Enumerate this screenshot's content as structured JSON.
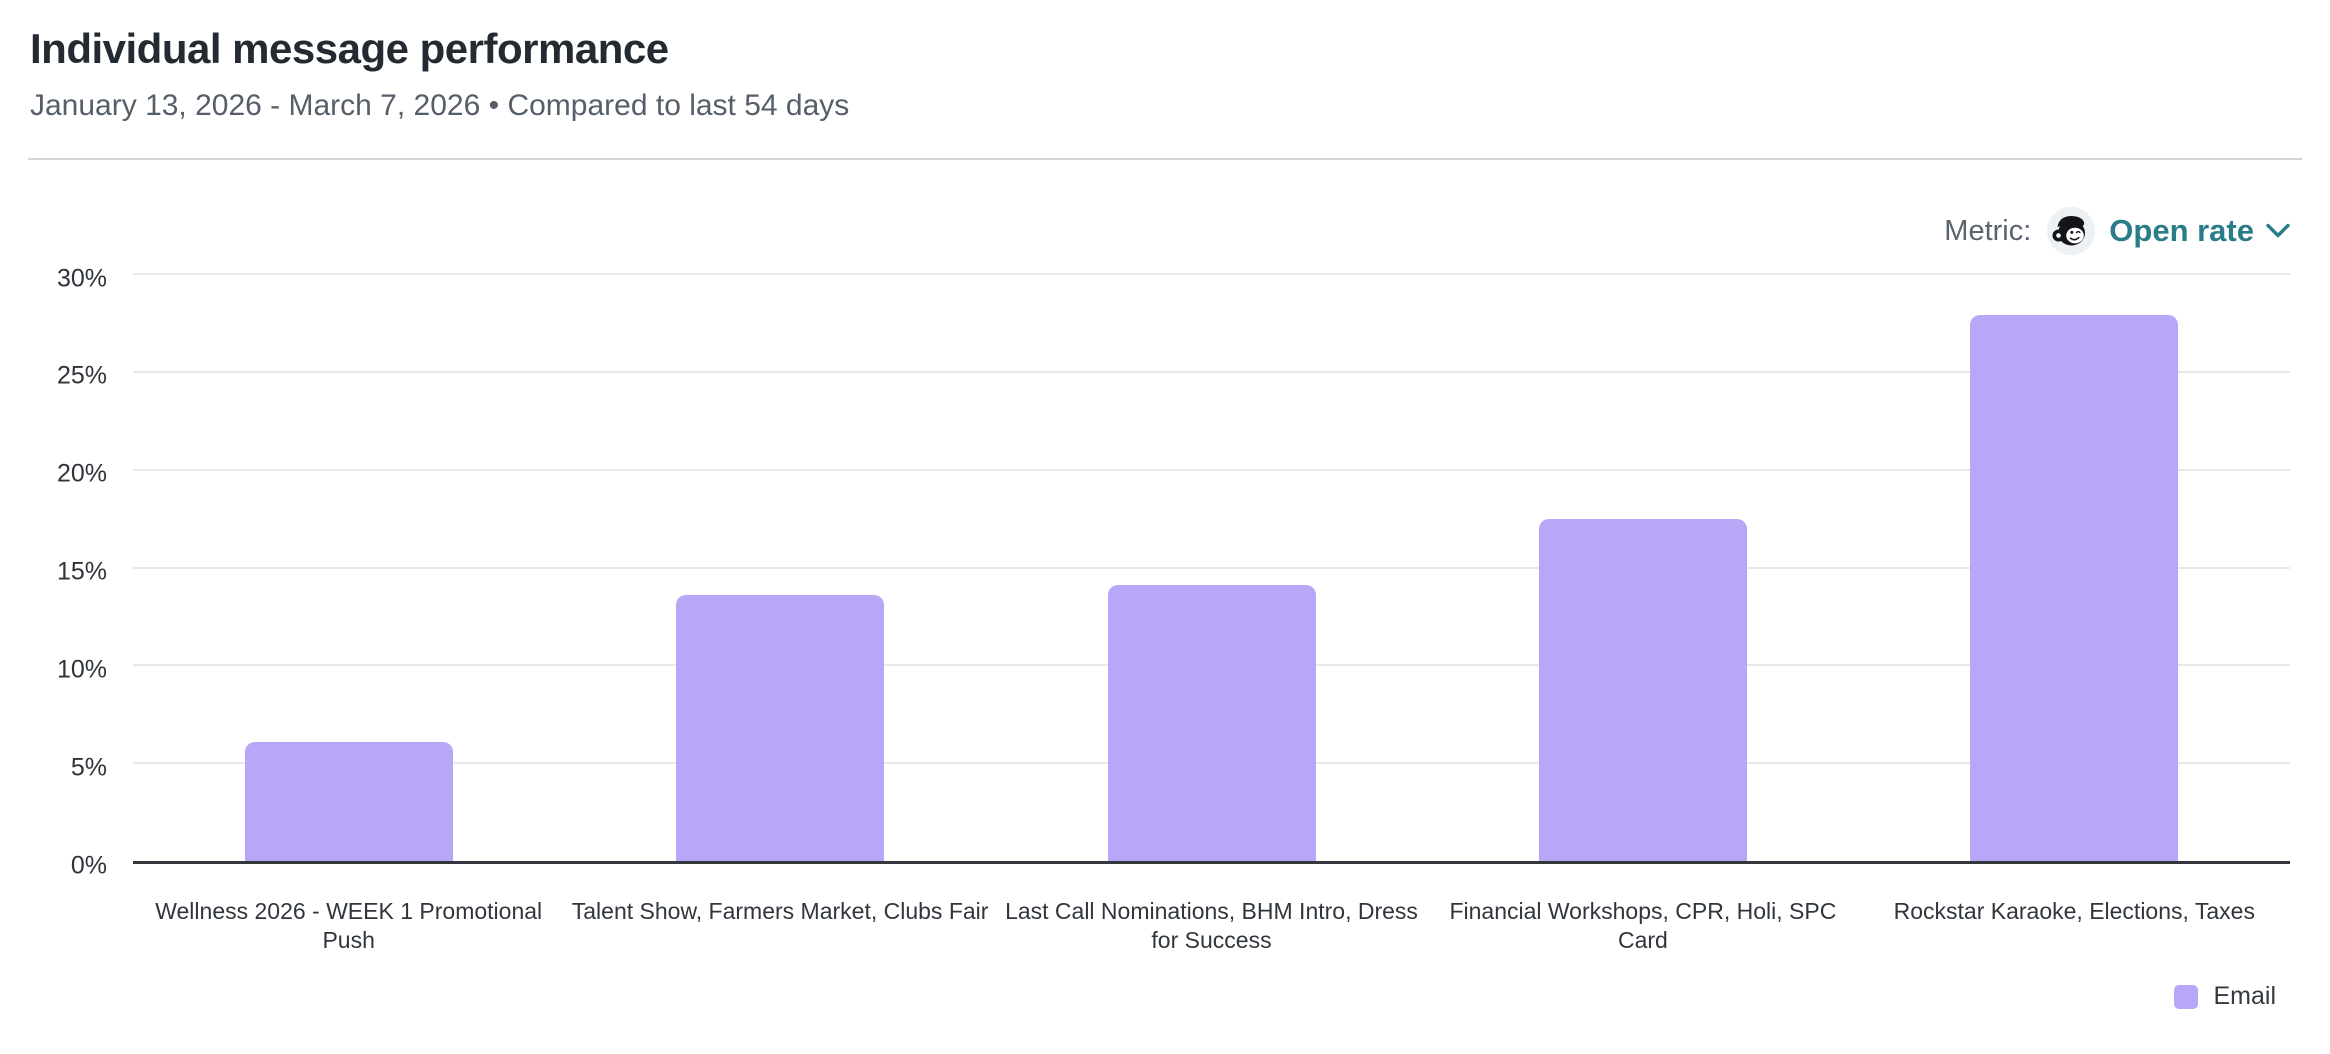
{
  "header": {
    "title": "Individual message performance",
    "subtitle": "January 13, 2026 - March 7, 2026 • Compared to last 54 days"
  },
  "metric_selector": {
    "label": "Metric:",
    "value": "Open rate",
    "icon": "mailchimp-freddie-icon",
    "dropdown_icon": "chevron-down-icon",
    "accent_color": "#2a7d88"
  },
  "chart_data": {
    "type": "bar",
    "title": "Individual message performance",
    "categories": [
      {
        "label": "Wellness 2026 - WEEK 1 Promotional Push",
        "lines": [
          "Wellness 2026 - WEEK 1 Promotional",
          "Push"
        ]
      },
      {
        "label": "Talent Show, Farmers Market, Clubs Fair",
        "lines": [
          "Talent Show, Farmers Market, Clubs Fair"
        ]
      },
      {
        "label": "Last Call Nominations, BHM Intro, Dress for Success",
        "lines": [
          "Last Call Nominations, BHM Intro, Dress",
          "for Success"
        ]
      },
      {
        "label": "Financial Workshops, CPR, Holi, SPC Card",
        "lines": [
          "Financial Workshops, CPR, Holi, SPC",
          "Card"
        ]
      },
      {
        "label": "Rockstar Karaoke, Elections, Taxes",
        "lines": [
          "Rockstar Karaoke, Elections, Taxes"
        ]
      }
    ],
    "series": [
      {
        "name": "Email",
        "color": "#b8a7f6",
        "values": [
          6.1,
          13.6,
          14.1,
          17.5,
          27.9
        ]
      }
    ],
    "xlabel": "",
    "ylabel": "",
    "ylim": [
      0,
      30
    ],
    "ytick_step": 5,
    "ytick_suffix": "%",
    "grid": true,
    "gridline_color": "#e8e8e8",
    "axis_line_color": "#33373b",
    "legend_position": "bottom-right"
  },
  "legend": {
    "items": [
      {
        "label": "Email",
        "color": "#b8a7f6"
      }
    ]
  }
}
